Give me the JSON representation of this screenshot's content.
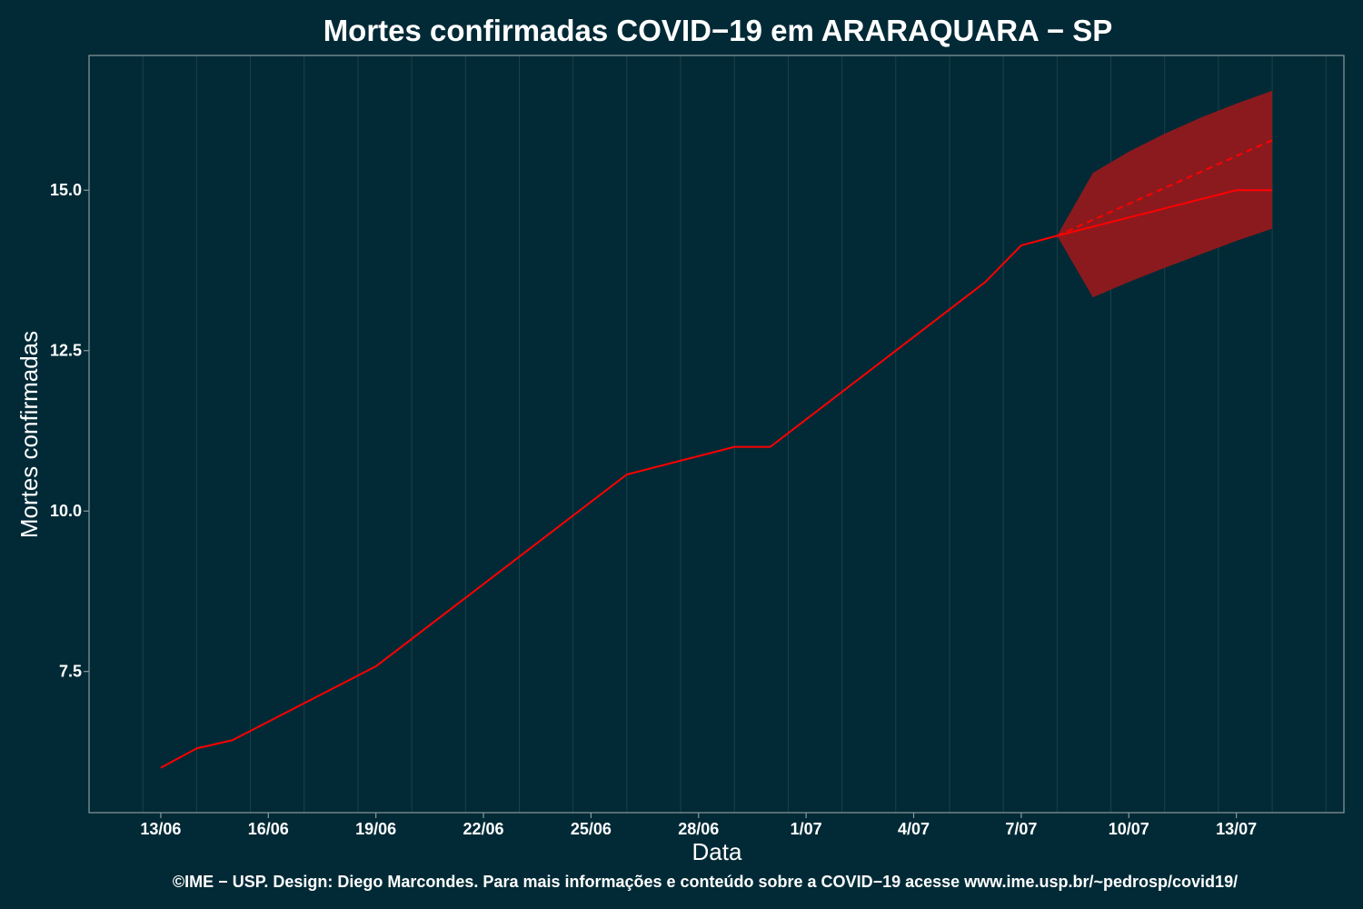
{
  "chart_data": {
    "type": "line",
    "title": "Mortes confirmadas COVID−19 em ARARAQUARA − SP",
    "xlabel": "Data",
    "ylabel": "Mortes confirmadas",
    "caption": "©IME − USP. Design: Diego Marcondes. Para mais informações e conteúdo sobre a COVID−19 acesse www.ime.usp.br/~pedrosp/covid19/",
    "x_axis": {
      "type": "date",
      "range": [
        "2020-06-11",
        "2020-07-16"
      ],
      "ticks": [
        "2020-06-13",
        "2020-06-16",
        "2020-06-19",
        "2020-06-22",
        "2020-06-25",
        "2020-06-28",
        "2020-07-01",
        "2020-07-04",
        "2020-07-07",
        "2020-07-10",
        "2020-07-13"
      ],
      "tick_labels": [
        "13/06",
        "16/06",
        "19/06",
        "22/06",
        "25/06",
        "28/06",
        "1/07",
        "4/07",
        "7/07",
        "10/07",
        "13/07"
      ]
    },
    "y_axis": {
      "range": [
        5.3,
        17.1
      ],
      "ticks": [
        7.5,
        10.0,
        12.5,
        15.0
      ],
      "tick_labels": [
        "7.5",
        "10.0",
        "12.5",
        "15.0"
      ]
    },
    "grid": true,
    "colors": {
      "background": "#012a36",
      "grid": "#1d4048",
      "frame": "#8a9a9e",
      "line": "#ff0000",
      "band": "#8b1a1e"
    },
    "series": [
      {
        "style": "solid",
        "x": [
          "2020-06-13",
          "2020-06-14",
          "2020-06-15",
          "2020-06-19",
          "2020-06-26",
          "2020-06-29",
          "2020-06-30",
          "2020-07-06",
          "2020-07-07",
          "2020-07-08",
          "2020-07-13",
          "2020-07-14"
        ],
        "y": [
          6.0,
          6.3,
          6.43,
          7.58,
          10.57,
          11.0,
          11.0,
          13.57,
          14.14,
          14.29,
          15.0,
          15.0
        ]
      },
      {
        "style": "dashed",
        "x": [
          "2020-07-08",
          "2020-07-14"
        ],
        "y": [
          14.29,
          15.78
        ]
      }
    ],
    "band": {
      "x": [
        "2020-07-08",
        "2020-07-09",
        "2020-07-10",
        "2020-07-11",
        "2020-07-12",
        "2020-07-13",
        "2020-07-14"
      ],
      "lower": [
        14.29,
        13.33,
        13.57,
        13.79,
        14.0,
        14.21,
        14.4
      ],
      "upper": [
        14.29,
        15.27,
        15.6,
        15.88,
        16.13,
        16.35,
        16.55
      ]
    }
  }
}
